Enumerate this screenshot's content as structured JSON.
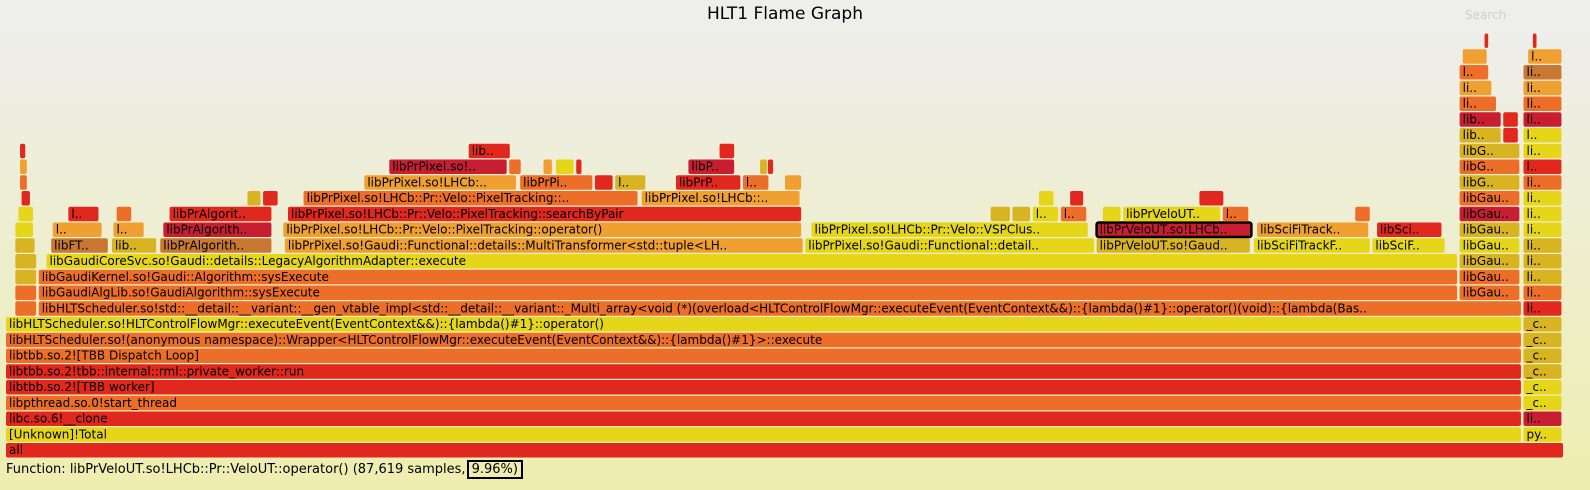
{
  "title": "HLT1 Flame Graph",
  "search_label": "Search",
  "details": {
    "function_prefix": "Function: ",
    "function_name": "libPrVeloUT.so!LHCb::Pr::VeloUT::operator()",
    "samples_text": "(87,619 samples,",
    "percent_text": "9.96%)"
  },
  "colors": {
    "red": "#e0281e",
    "darkred": "#c81e32",
    "orange": "#ec6e28",
    "lightorange": "#f0a030",
    "yellow": "#e6d61a",
    "gold": "#d8b422",
    "brown": "#c87832"
  },
  "chart_data": {
    "type": "flame",
    "title": "HLT1 Flame Graph",
    "total_samples_scale": 879700,
    "highlighted": "libPrVeloUT.so!LHCb::P..",
    "frames": [
      {
        "d": 0,
        "x": 0,
        "w": 100,
        "label": "all",
        "c": "red"
      },
      {
        "d": 1,
        "x": 0,
        "w": 97.3,
        "label": "[Unknown]!Total",
        "c": "yellow"
      },
      {
        "d": 1,
        "x": 97.4,
        "w": 2.5,
        "label": "py..",
        "c": "yellow"
      },
      {
        "d": 2,
        "x": 0,
        "w": 97.3,
        "label": "libc.so.6!__clone",
        "c": "red"
      },
      {
        "d": 2,
        "x": 97.4,
        "w": 2.5,
        "label": "libc..",
        "c": "darkred"
      },
      {
        "d": 3,
        "x": 0,
        "w": 97.3,
        "label": "libpthread.so.0!start_thread",
        "c": "orange"
      },
      {
        "d": 3,
        "x": 97.4,
        "w": 2.5,
        "label": "_ct..",
        "c": "yellow"
      },
      {
        "d": 4,
        "x": 0,
        "w": 97.3,
        "label": "libtbb.so.2![TBB worker]",
        "c": "red"
      },
      {
        "d": 4,
        "x": 97.4,
        "w": 2.5,
        "label": "_ct..",
        "c": "yellow"
      },
      {
        "d": 5,
        "x": 0,
        "w": 97.3,
        "label": "libtbb.so.2!tbb::internal::rml::private_worker::run",
        "c": "red"
      },
      {
        "d": 5,
        "x": 97.4,
        "w": 2.5,
        "label": "_ct..",
        "c": "gold"
      },
      {
        "d": 6,
        "x": 0,
        "w": 97.3,
        "label": "libtbb.so.2![TBB Dispatch Loop]",
        "c": "orange"
      },
      {
        "d": 6,
        "x": 97.4,
        "w": 2.5,
        "label": "_ct..",
        "c": "gold"
      },
      {
        "d": 7,
        "x": 0,
        "w": 97.3,
        "label": "libHLTScheduler.so!(anonymous namespace)::Wrapper<HLTControlFlowMgr::executeEvent(EventContext&&)::{lambda()#1}>::execute",
        "c": "orange"
      },
      {
        "d": 7,
        "x": 97.4,
        "w": 2.5,
        "label": "_ct..",
        "c": "gold"
      },
      {
        "d": 8,
        "x": 0,
        "w": 97.3,
        "label": "libHLTScheduler.so!HLTControlFlowMgr::executeEvent(EventContext&&)::{lambda()#1}::operator()",
        "c": "yellow"
      },
      {
        "d": 8,
        "x": 97.4,
        "w": 2.5,
        "label": "_ct..",
        "c": "gold"
      },
      {
        "d": 9,
        "x": 0.6,
        "w": 1.4,
        "label": "l..",
        "c": "orange"
      },
      {
        "d": 9,
        "x": 2.1,
        "w": 95.2,
        "label": "libHLTScheduler.so!std::__detail::__variant::__gen_vtable_impl<std::__detail::__variant::_Multi_array<void (*)(overload<HLTControlFlowMgr::executeEvent(EventContext&&)::{lambda()#1}::operator()(void)::{lambda(BasicNode&)#1},...",
        "c": "orange"
      },
      {
        "d": 9,
        "x": 97.4,
        "w": 2.5,
        "label": "lib..",
        "c": "red"
      },
      {
        "d": 10,
        "x": 0.6,
        "w": 1.4,
        "label": "l..",
        "c": "orange"
      },
      {
        "d": 10,
        "x": 2.1,
        "w": 91.1,
        "label": "libGaudiAlgLib.so!GaudiAlgorithm::sysExecute",
        "c": "orange"
      },
      {
        "d": 10,
        "x": 93.3,
        "w": 3.9,
        "label": "libGaudi..",
        "c": "orange"
      },
      {
        "d": 10,
        "x": 97.4,
        "w": 2.5,
        "label": "lib..",
        "c": "orange"
      },
      {
        "d": 11,
        "x": 0.6,
        "w": 1.4,
        "label": "l..",
        "c": "gold"
      },
      {
        "d": 11,
        "x": 2.1,
        "w": 91.1,
        "label": "libGaudiKernel.so!Gaudi::Algorithm::sysExecute",
        "c": "orange"
      },
      {
        "d": 11,
        "x": 93.3,
        "w": 3.9,
        "label": "libGau..",
        "c": "orange"
      },
      {
        "d": 11,
        "x": 97.4,
        "w": 2.5,
        "label": "lib..",
        "c": "gold"
      },
      {
        "d": 12,
        "x": 0.6,
        "w": 1.4,
        "label": "l..",
        "c": "gold"
      },
      {
        "d": 12,
        "x": 2.6,
        "w": 90.6,
        "label": "libGaudiCoreSvc.so!Gaudi::details::LegacyAlgorithmAdapter::execute",
        "c": "yellow"
      },
      {
        "d": 12,
        "x": 93.3,
        "w": 3.9,
        "label": "libGau..",
        "c": "gold"
      },
      {
        "d": 12,
        "x": 97.4,
        "w": 2.5,
        "label": "lib..",
        "c": "gold"
      },
      {
        "d": 13,
        "x": 0.6,
        "w": 1.3,
        "label": "l..",
        "c": "gold"
      },
      {
        "d": 13,
        "x": 2.9,
        "w": 3.7,
        "label": "libFT..",
        "c": "brown"
      },
      {
        "d": 13,
        "x": 6.8,
        "w": 2.9,
        "label": "libPa..",
        "c": "gold"
      },
      {
        "d": 13,
        "x": 9.9,
        "w": 7.2,
        "label": "libPrAlgorithms...",
        "c": "brown"
      },
      {
        "d": 13,
        "x": 17.9,
        "w": 33.3,
        "label": "libPrPixel.so!Gaudi::Functional::details::MultiTransformer<std::tuple<LHCb::Pr::Vel..",
        "c": "lightorange"
      },
      {
        "d": 13,
        "x": 51.3,
        "w": 18.6,
        "label": "libPrPixel.so!Gaudi::Functional::details::Multi..",
        "c": "yellow"
      },
      {
        "d": 13,
        "x": 70.0,
        "w": 9.9,
        "label": "libPrVeloUT.so!Gaudi::F..",
        "c": "gold"
      },
      {
        "d": 13,
        "x": 80.1,
        "w": 7.5,
        "label": "libSciFiTrackForw..",
        "c": "yellow"
      },
      {
        "d": 13,
        "x": 87.7,
        "w": 4.7,
        "label": "libSciFiTr..",
        "c": "yellow"
      },
      {
        "d": 13,
        "x": 93.3,
        "w": 3.9,
        "label": "libGau..",
        "c": "yellow"
      },
      {
        "d": 13,
        "x": 97.4,
        "w": 2.5,
        "label": "lib..",
        "c": "gold"
      },
      {
        "d": 14,
        "x": 0.6,
        "w": 1.2,
        "label": "l..",
        "c": "yellow"
      },
      {
        "d": 14,
        "x": 3.0,
        "w": 3.2,
        "label": "l..",
        "c": "lightorange"
      },
      {
        "d": 14,
        "x": 6.9,
        "w": 2.0,
        "label": "l..",
        "c": "lightorange"
      },
      {
        "d": 14,
        "x": 10.1,
        "w": 7.0,
        "label": "libPrAlgorithms...",
        "c": "darkred"
      },
      {
        "d": 14,
        "x": 17.8,
        "w": 33.3,
        "label": "libPrPixel.so!LHCb::Pr::Velo::PixelTracking::operator()",
        "c": "lightorange"
      },
      {
        "d": 14,
        "x": 51.7,
        "w": 17.8,
        "label": "libPrPixel.so!LHCb::Pr::Velo::VSPClus::ope..",
        "c": "yellow"
      },
      {
        "d": 14,
        "x": 70.0,
        "w": 10.0,
        "label": "libPrVeloUT.so!LHCb::P..",
        "c": "darkred"
      },
      {
        "d": 14,
        "x": 80.3,
        "w": 7.2,
        "label": "libSciFiTrackFor..",
        "c": "lightorange"
      },
      {
        "d": 14,
        "x": 88.0,
        "w": 4.2,
        "label": "libSciFiT..",
        "c": "red"
      },
      {
        "d": 14,
        "x": 93.3,
        "w": 3.9,
        "label": "libGau..",
        "c": "gold"
      },
      {
        "d": 14,
        "x": 97.4,
        "w": 2.5,
        "label": "lib..",
        "c": "yellow"
      },
      {
        "d": 15,
        "x": 0.8,
        "w": 1.0,
        "label": "",
        "c": "yellow"
      },
      {
        "d": 15,
        "x": 4.0,
        "w": 2.0,
        "label": "lib..",
        "c": "red"
      },
      {
        "d": 15,
        "x": 7.1,
        "w": 1.0,
        "label": "",
        "c": "orange"
      },
      {
        "d": 15,
        "x": 10.5,
        "w": 6.6,
        "label": "libPrAlgorithms..",
        "c": "red"
      },
      {
        "d": 15,
        "x": 18.1,
        "w": 33.0,
        "label": "libPrPixel.so!LHCb::Pr::Velo::PixelTracking::searchByPair",
        "c": "red"
      },
      {
        "d": 15,
        "x": 63.2,
        "w": 1.3,
        "label": "l..",
        "c": "gold"
      },
      {
        "d": 15,
        "x": 64.6,
        "w": 1.2,
        "label": "l..",
        "c": "gold"
      },
      {
        "d": 15,
        "x": 65.9,
        "w": 1.7,
        "label": "lib..",
        "c": "yellow"
      },
      {
        "d": 15,
        "x": 67.7,
        "w": 1.7,
        "label": "li..",
        "c": "orange"
      },
      {
        "d": 15,
        "x": 70.4,
        "w": 1.2,
        "label": "l..",
        "c": "yellow"
      },
      {
        "d": 15,
        "x": 71.7,
        "w": 6.3,
        "label": "libPrVeloUT.so..",
        "c": "yellow"
      },
      {
        "d": 15,
        "x": 78.1,
        "w": 1.7,
        "label": "li..",
        "c": "orange"
      },
      {
        "d": 15,
        "x": 86.6,
        "w": 1.0,
        "label": "",
        "c": "orange"
      },
      {
        "d": 15,
        "x": 93.3,
        "w": 3.9,
        "label": "libGau..",
        "c": "darkred"
      },
      {
        "d": 15,
        "x": 97.4,
        "w": 2.5,
        "label": "lib..",
        "c": "yellow"
      },
      {
        "d": 16,
        "x": 1.0,
        "w": 0.6,
        "label": "",
        "c": "red"
      },
      {
        "d": 16,
        "x": 15.5,
        "w": 0.9,
        "label": "",
        "c": "gold"
      },
      {
        "d": 16,
        "x": 16.5,
        "w": 1.0,
        "label": "",
        "c": "red"
      },
      {
        "d": 16,
        "x": 19.1,
        "w": 21.5,
        "label": "libPrPixel.so!LHCb::Pr::Velo::PixelTracking::doPairSe..",
        "c": "orange"
      },
      {
        "d": 16,
        "x": 40.8,
        "w": 10.2,
        "label": "libPrPixel.so!LHCb::Pr::..",
        "c": "lightorange"
      },
      {
        "d": 16,
        "x": 66.3,
        "w": 1.0,
        "label": "",
        "c": "yellow"
      },
      {
        "d": 16,
        "x": 68.3,
        "w": 0.9,
        "label": "",
        "c": "red"
      },
      {
        "d": 16,
        "x": 76.6,
        "w": 1.6,
        "label": "li..",
        "c": "red"
      },
      {
        "d": 16,
        "x": 93.3,
        "w": 3.9,
        "label": "libGau..",
        "c": "orange"
      },
      {
        "d": 16,
        "x": 97.4,
        "w": 2.5,
        "label": "lib..",
        "c": "yellow"
      },
      {
        "d": 17,
        "x": 0.9,
        "w": 0.5,
        "label": "",
        "c": "orange"
      },
      {
        "d": 17,
        "x": 23.0,
        "w": 9.8,
        "label": "libPrPixel.so!LHCb::Pr..",
        "c": "lightorange"
      },
      {
        "d": 17,
        "x": 33.0,
        "w": 4.7,
        "label": "libPrPixel..",
        "c": "orange"
      },
      {
        "d": 17,
        "x": 37.8,
        "w": 1.2,
        "label": "l..",
        "c": "red"
      },
      {
        "d": 17,
        "x": 39.1,
        "w": 2.0,
        "label": "lib..",
        "c": "gold"
      },
      {
        "d": 17,
        "x": 43.0,
        "w": 4.2,
        "label": "libPrPixe..",
        "c": "red"
      },
      {
        "d": 17,
        "x": 47.3,
        "w": 1.7,
        "label": "lib..",
        "c": "orange"
      },
      {
        "d": 17,
        "x": 50.0,
        "w": 1.1,
        "label": "l..",
        "c": "lightorange"
      },
      {
        "d": 17,
        "x": 93.3,
        "w": 3.9,
        "label": "libG..",
        "c": "gold"
      },
      {
        "d": 17,
        "x": 97.4,
        "w": 2.5,
        "label": "li..",
        "c": "orange"
      },
      {
        "d": 18,
        "x": 0.9,
        "w": 0.5,
        "label": "",
        "c": "lightorange"
      },
      {
        "d": 18,
        "x": 24.6,
        "w": 7.6,
        "label": "libPrPixel.so!LHC..",
        "c": "darkred"
      },
      {
        "d": 18,
        "x": 32.3,
        "w": 0.8,
        "label": "",
        "c": "orange"
      },
      {
        "d": 18,
        "x": 34.5,
        "w": 0.6,
        "label": "",
        "c": "lightorange"
      },
      {
        "d": 18,
        "x": 35.3,
        "w": 1.2,
        "label": "l..",
        "c": "yellow"
      },
      {
        "d": 18,
        "x": 36.6,
        "w": 0.4,
        "label": "",
        "c": "red"
      },
      {
        "d": 18,
        "x": 43.8,
        "w": 3.0,
        "label": "libPr..",
        "c": "darkred"
      },
      {
        "d": 18,
        "x": 48.4,
        "w": 0.5,
        "label": "",
        "c": "gold"
      },
      {
        "d": 18,
        "x": 48.9,
        "w": 0.4,
        "label": "",
        "c": "red"
      },
      {
        "d": 18,
        "x": 93.3,
        "w": 3.9,
        "label": "libG..",
        "c": "orange"
      },
      {
        "d": 18,
        "x": 97.4,
        "w": 2.5,
        "label": "l..",
        "c": "red"
      },
      {
        "d": 19,
        "x": 0.9,
        "w": 0.4,
        "label": "",
        "c": "red"
      },
      {
        "d": 19,
        "x": 29.7,
        "w": 2.7,
        "label": "libPr..",
        "c": "red"
      },
      {
        "d": 19,
        "x": 45.8,
        "w": 1.0,
        "label": "",
        "c": "red"
      },
      {
        "d": 19,
        "x": 93.3,
        "w": 3.9,
        "label": "libG..",
        "c": "gold"
      },
      {
        "d": 19,
        "x": 97.4,
        "w": 2.5,
        "label": "li..",
        "c": "yellow"
      },
      {
        "d": 20,
        "x": 93.3,
        "w": 2.7,
        "label": "lib..",
        "c": "gold"
      },
      {
        "d": 20,
        "x": 96.1,
        "w": 1.0,
        "label": "",
        "c": "red"
      },
      {
        "d": 20,
        "x": 97.4,
        "w": 2.5,
        "label": "l..",
        "c": "yellow"
      },
      {
        "d": 21,
        "x": 93.3,
        "w": 2.7,
        "label": "lib..",
        "c": "darkred"
      },
      {
        "d": 21,
        "x": 96.1,
        "w": 1.0,
        "label": "",
        "c": "red"
      },
      {
        "d": 21,
        "x": 97.4,
        "w": 2.5,
        "label": "lib..",
        "c": "darkred"
      },
      {
        "d": 22,
        "x": 93.3,
        "w": 2.4,
        "label": "lib..",
        "c": "orange"
      },
      {
        "d": 22,
        "x": 97.4,
        "w": 2.5,
        "label": "lib..",
        "c": "orange"
      },
      {
        "d": 23,
        "x": 93.3,
        "w": 2.1,
        "label": "lib..",
        "c": "lightorange"
      },
      {
        "d": 23,
        "x": 97.4,
        "w": 2.5,
        "label": "lib..",
        "c": "lightorange"
      },
      {
        "d": 24,
        "x": 93.3,
        "w": 1.9,
        "label": "lib..",
        "c": "orange"
      },
      {
        "d": 24,
        "x": 97.4,
        "w": 2.5,
        "label": "lib..",
        "c": "brown"
      },
      {
        "d": 25,
        "x": 93.5,
        "w": 1.6,
        "label": "l..",
        "c": "lightorange"
      },
      {
        "d": 25,
        "x": 97.7,
        "w": 2.2,
        "label": "l..",
        "c": "lightorange"
      },
      {
        "d": 26,
        "x": 94.9,
        "w": 0.3,
        "label": "",
        "c": "red"
      },
      {
        "d": 26,
        "x": 98.0,
        "w": 0.3,
        "label": "",
        "c": "red"
      }
    ]
  }
}
